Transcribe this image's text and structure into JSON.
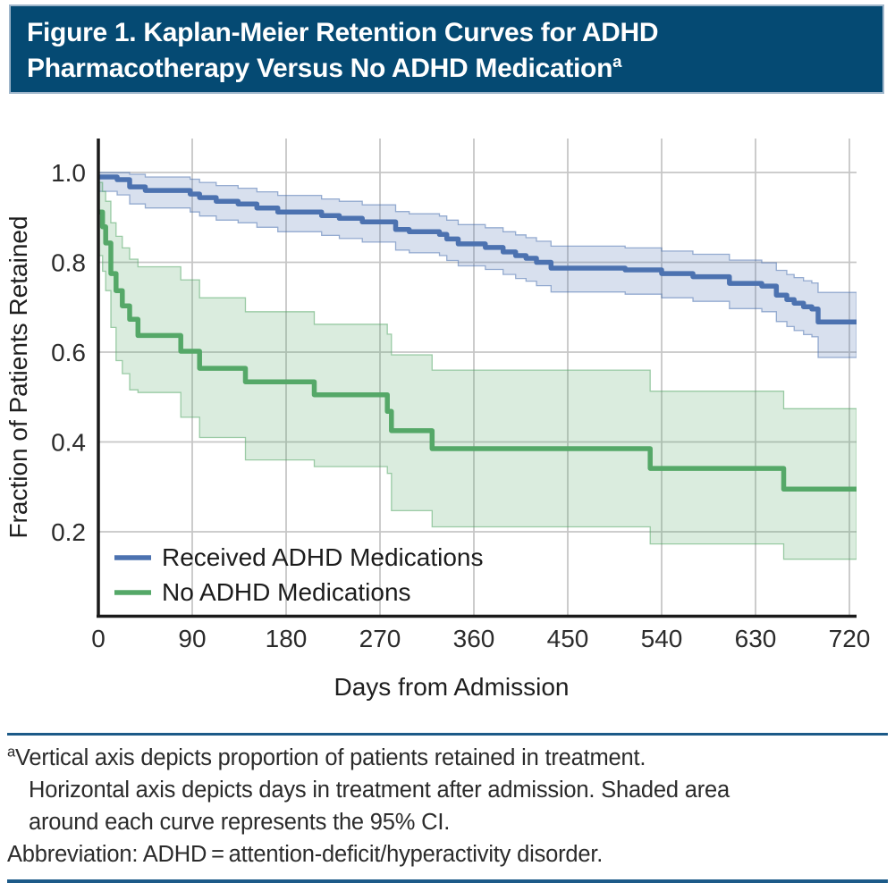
{
  "figure": {
    "title_line1": "Figure 1. Kaplan-Meier Retention Curves for ADHD",
    "title_line2": "Pharmacotherapy Versus No ADHD Medication",
    "title_footnote_marker": "a"
  },
  "footnote": {
    "marker": "a",
    "line1": "Vertical axis depicts proportion of patients retained in treatment.",
    "line2": "Horizontal axis depicts days in treatment after admission. Shaded area",
    "line3": "around each curve represents the 95% CI.",
    "line4": "Abbreviation: ADHD = attention-deficit/hyperactivity disorder."
  },
  "colors": {
    "title_bar_bg": "#054A73",
    "title_bar_border": "#9FB6CB",
    "rule_blue": "#1C5A88",
    "series_blue": "#4C72B0",
    "series_green": "#55A868",
    "gridline": "#c6c6c6"
  },
  "chart_data": {
    "type": "line",
    "subtype": "kaplan-meier-step-curves-with-95ci-bands",
    "xlabel": "Days from Admission",
    "ylabel": "Fraction of Patients Retained",
    "x_ticks": [
      0,
      90,
      180,
      270,
      360,
      450,
      540,
      630,
      720
    ],
    "y_ticks": [
      1.0,
      0.8,
      0.6,
      0.4,
      0.2
    ],
    "x_max_drawn": 727,
    "ylim_shown": [
      0.015,
      1.075
    ],
    "grid": true,
    "legend_position": "lower-left-inside",
    "series": [
      {
        "name": "Received ADHD Medications",
        "color": "#4C72B0",
        "end_day": 727,
        "steps": [
          [
            0,
            0.99
          ],
          [
            18,
            0.984
          ],
          [
            30,
            0.968
          ],
          [
            45,
            0.96
          ],
          [
            88,
            0.952
          ],
          [
            97,
            0.944
          ],
          [
            113,
            0.936
          ],
          [
            134,
            0.93
          ],
          [
            152,
            0.921
          ],
          [
            172,
            0.912
          ],
          [
            214,
            0.904
          ],
          [
            231,
            0.898
          ],
          [
            253,
            0.89
          ],
          [
            285,
            0.873
          ],
          [
            298,
            0.868
          ],
          [
            327,
            0.862
          ],
          [
            334,
            0.852
          ],
          [
            345,
            0.841
          ],
          [
            371,
            0.833
          ],
          [
            388,
            0.823
          ],
          [
            400,
            0.815
          ],
          [
            410,
            0.809
          ],
          [
            420,
            0.8
          ],
          [
            434,
            0.787
          ],
          [
            505,
            0.783
          ],
          [
            540,
            0.775
          ],
          [
            570,
            0.768
          ],
          [
            605,
            0.753
          ],
          [
            636,
            0.747
          ],
          [
            650,
            0.727
          ],
          [
            660,
            0.717
          ],
          [
            667,
            0.709
          ],
          [
            676,
            0.701
          ],
          [
            684,
            0.696
          ],
          [
            690,
            0.667
          ]
        ],
        "ci_upper": [
          [
            0,
            1.0
          ],
          [
            18,
            1.0
          ],
          [
            30,
            0.996
          ],
          [
            45,
            0.99
          ],
          [
            88,
            0.985
          ],
          [
            97,
            0.978
          ],
          [
            113,
            0.971
          ],
          [
            134,
            0.965
          ],
          [
            152,
            0.957
          ],
          [
            172,
            0.949
          ],
          [
            214,
            0.941
          ],
          [
            231,
            0.936
          ],
          [
            253,
            0.928
          ],
          [
            285,
            0.913
          ],
          [
            298,
            0.908
          ],
          [
            327,
            0.903
          ],
          [
            334,
            0.894
          ],
          [
            345,
            0.884
          ],
          [
            371,
            0.877
          ],
          [
            388,
            0.868
          ],
          [
            400,
            0.861
          ],
          [
            410,
            0.855
          ],
          [
            420,
            0.847
          ],
          [
            434,
            0.836
          ],
          [
            505,
            0.832
          ],
          [
            540,
            0.825
          ],
          [
            570,
            0.818
          ],
          [
            605,
            0.805
          ],
          [
            636,
            0.799
          ],
          [
            650,
            0.782
          ],
          [
            660,
            0.773
          ],
          [
            667,
            0.766
          ],
          [
            676,
            0.759
          ],
          [
            684,
            0.754
          ],
          [
            690,
            0.733
          ]
        ],
        "ci_lower": [
          [
            0,
            0.958
          ],
          [
            18,
            0.95
          ],
          [
            30,
            0.93
          ],
          [
            45,
            0.921
          ],
          [
            88,
            0.912
          ],
          [
            97,
            0.903
          ],
          [
            113,
            0.894
          ],
          [
            134,
            0.888
          ],
          [
            152,
            0.878
          ],
          [
            172,
            0.868
          ],
          [
            214,
            0.86
          ],
          [
            231,
            0.853
          ],
          [
            253,
            0.845
          ],
          [
            285,
            0.827
          ],
          [
            298,
            0.821
          ],
          [
            327,
            0.815
          ],
          [
            334,
            0.804
          ],
          [
            345,
            0.792
          ],
          [
            371,
            0.784
          ],
          [
            388,
            0.773
          ],
          [
            400,
            0.764
          ],
          [
            410,
            0.758
          ],
          [
            420,
            0.748
          ],
          [
            434,
            0.734
          ],
          [
            505,
            0.729
          ],
          [
            540,
            0.721
          ],
          [
            570,
            0.713
          ],
          [
            605,
            0.697
          ],
          [
            636,
            0.69
          ],
          [
            650,
            0.668
          ],
          [
            660,
            0.657
          ],
          [
            667,
            0.648
          ],
          [
            676,
            0.639
          ],
          [
            684,
            0.634
          ],
          [
            690,
            0.588
          ]
        ]
      },
      {
        "name": "No ADHD Medications",
        "color": "#55A868",
        "end_day": 727,
        "steps": [
          [
            0,
            0.912
          ],
          [
            4,
            0.879
          ],
          [
            7,
            0.843
          ],
          [
            12,
            0.775
          ],
          [
            17,
            0.737
          ],
          [
            23,
            0.703
          ],
          [
            30,
            0.673
          ],
          [
            38,
            0.637
          ],
          [
            79,
            0.602
          ],
          [
            97,
            0.564
          ],
          [
            141,
            0.534
          ],
          [
            207,
            0.505
          ],
          [
            277,
            0.468
          ],
          [
            281,
            0.425
          ],
          [
            320,
            0.385
          ],
          [
            529,
            0.341
          ],
          [
            657,
            0.295
          ]
        ],
        "ci_upper": [
          [
            0,
            0.978
          ],
          [
            4,
            0.958
          ],
          [
            7,
            0.936
          ],
          [
            12,
            0.888
          ],
          [
            17,
            0.858
          ],
          [
            23,
            0.832
          ],
          [
            30,
            0.807
          ],
          [
            38,
            0.79
          ],
          [
            79,
            0.761
          ],
          [
            97,
            0.721
          ],
          [
            141,
            0.69
          ],
          [
            207,
            0.662
          ],
          [
            277,
            0.64
          ],
          [
            281,
            0.594
          ],
          [
            320,
            0.56
          ],
          [
            529,
            0.513
          ],
          [
            657,
            0.474
          ]
        ],
        "ci_lower": [
          [
            0,
            0.815
          ],
          [
            4,
            0.78
          ],
          [
            7,
            0.737
          ],
          [
            12,
            0.655
          ],
          [
            17,
            0.581
          ],
          [
            23,
            0.552
          ],
          [
            30,
            0.516
          ],
          [
            38,
            0.51
          ],
          [
            79,
            0.455
          ],
          [
            97,
            0.41
          ],
          [
            141,
            0.36
          ],
          [
            207,
            0.345
          ],
          [
            277,
            0.33
          ],
          [
            281,
            0.247
          ],
          [
            320,
            0.211
          ],
          [
            529,
            0.173
          ],
          [
            657,
            0.139
          ]
        ]
      }
    ]
  }
}
